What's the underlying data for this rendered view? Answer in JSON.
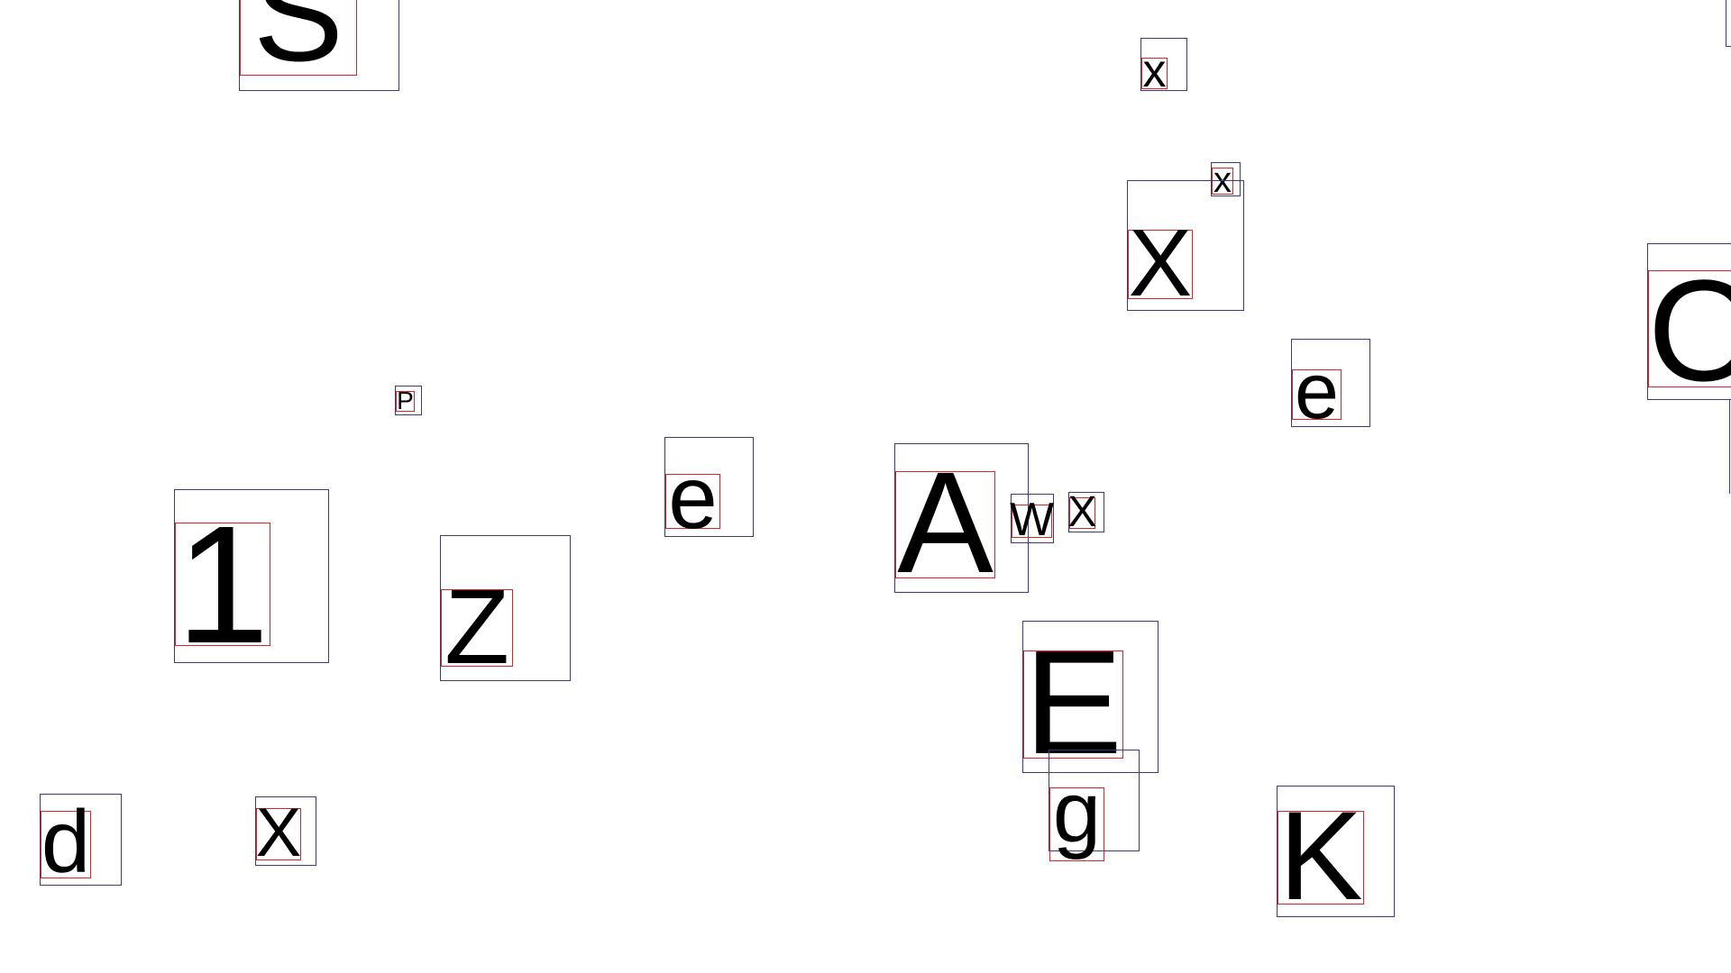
{
  "canvas": {
    "background": "#ffffff",
    "outer_box_color": "#3b3b7a",
    "ink_box_color": "#d62728",
    "glyph_color": "#000000"
  },
  "glyphs": [
    {
      "id": "S",
      "char": "S"
    },
    {
      "id": "x-top",
      "char": "x"
    },
    {
      "id": "x-small",
      "char": "x"
    },
    {
      "id": "X-large",
      "char": "X"
    },
    {
      "id": "e-right",
      "char": "e"
    },
    {
      "id": "O-partial",
      "char": "O"
    },
    {
      "id": "P-tiny",
      "char": "P"
    },
    {
      "id": "one",
      "char": "1"
    },
    {
      "id": "Z",
      "char": "Z"
    },
    {
      "id": "e-center",
      "char": "e"
    },
    {
      "id": "A",
      "char": "A"
    },
    {
      "id": "W",
      "char": "W"
    },
    {
      "id": "X-mid",
      "char": "X"
    },
    {
      "id": "E",
      "char": "E"
    },
    {
      "id": "g",
      "char": "g"
    },
    {
      "id": "K",
      "char": "K"
    },
    {
      "id": "d",
      "char": "d"
    },
    {
      "id": "X-bottom",
      "char": "X"
    }
  ]
}
